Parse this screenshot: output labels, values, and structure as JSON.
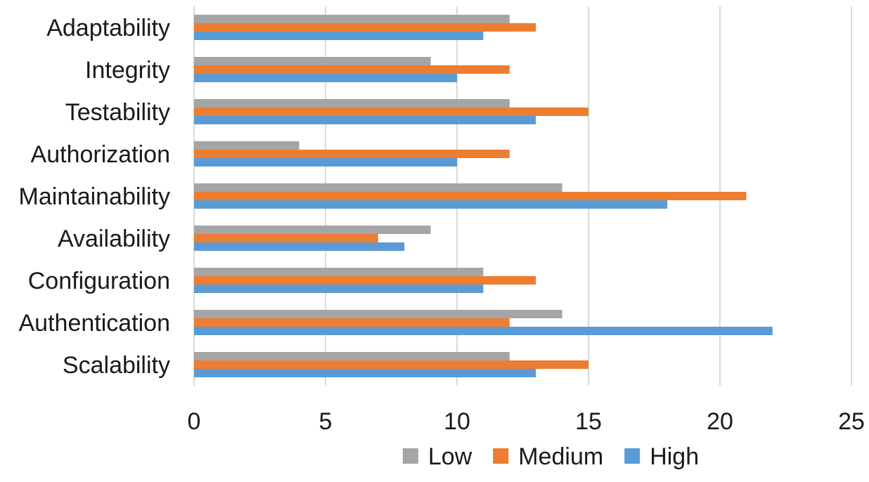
{
  "chart_data": {
    "type": "bar",
    "orientation": "horizontal",
    "title": "",
    "xlabel": "",
    "ylabel": "",
    "xlim": [
      0,
      25
    ],
    "xticks": [
      0,
      5,
      10,
      15,
      20,
      25
    ],
    "grid": true,
    "legend_position": "bottom",
    "categories": [
      "Adaptability",
      "Integrity",
      "Testability",
      "Authorization",
      "Maintainability",
      "Availability",
      "Configuration",
      "Authentication",
      "Scalability"
    ],
    "series": [
      {
        "name": "Low",
        "color": "#a5a5a5",
        "values": [
          12,
          9,
          12,
          4,
          14,
          9,
          11,
          14,
          12
        ]
      },
      {
        "name": "Medium",
        "color": "#ed7d31",
        "values": [
          13,
          12,
          15,
          12,
          21,
          7,
          13,
          12,
          15
        ]
      },
      {
        "name": "High",
        "color": "#5b9bd5",
        "values": [
          11,
          10,
          13,
          10,
          18,
          8,
          11,
          22,
          13
        ]
      }
    ]
  }
}
